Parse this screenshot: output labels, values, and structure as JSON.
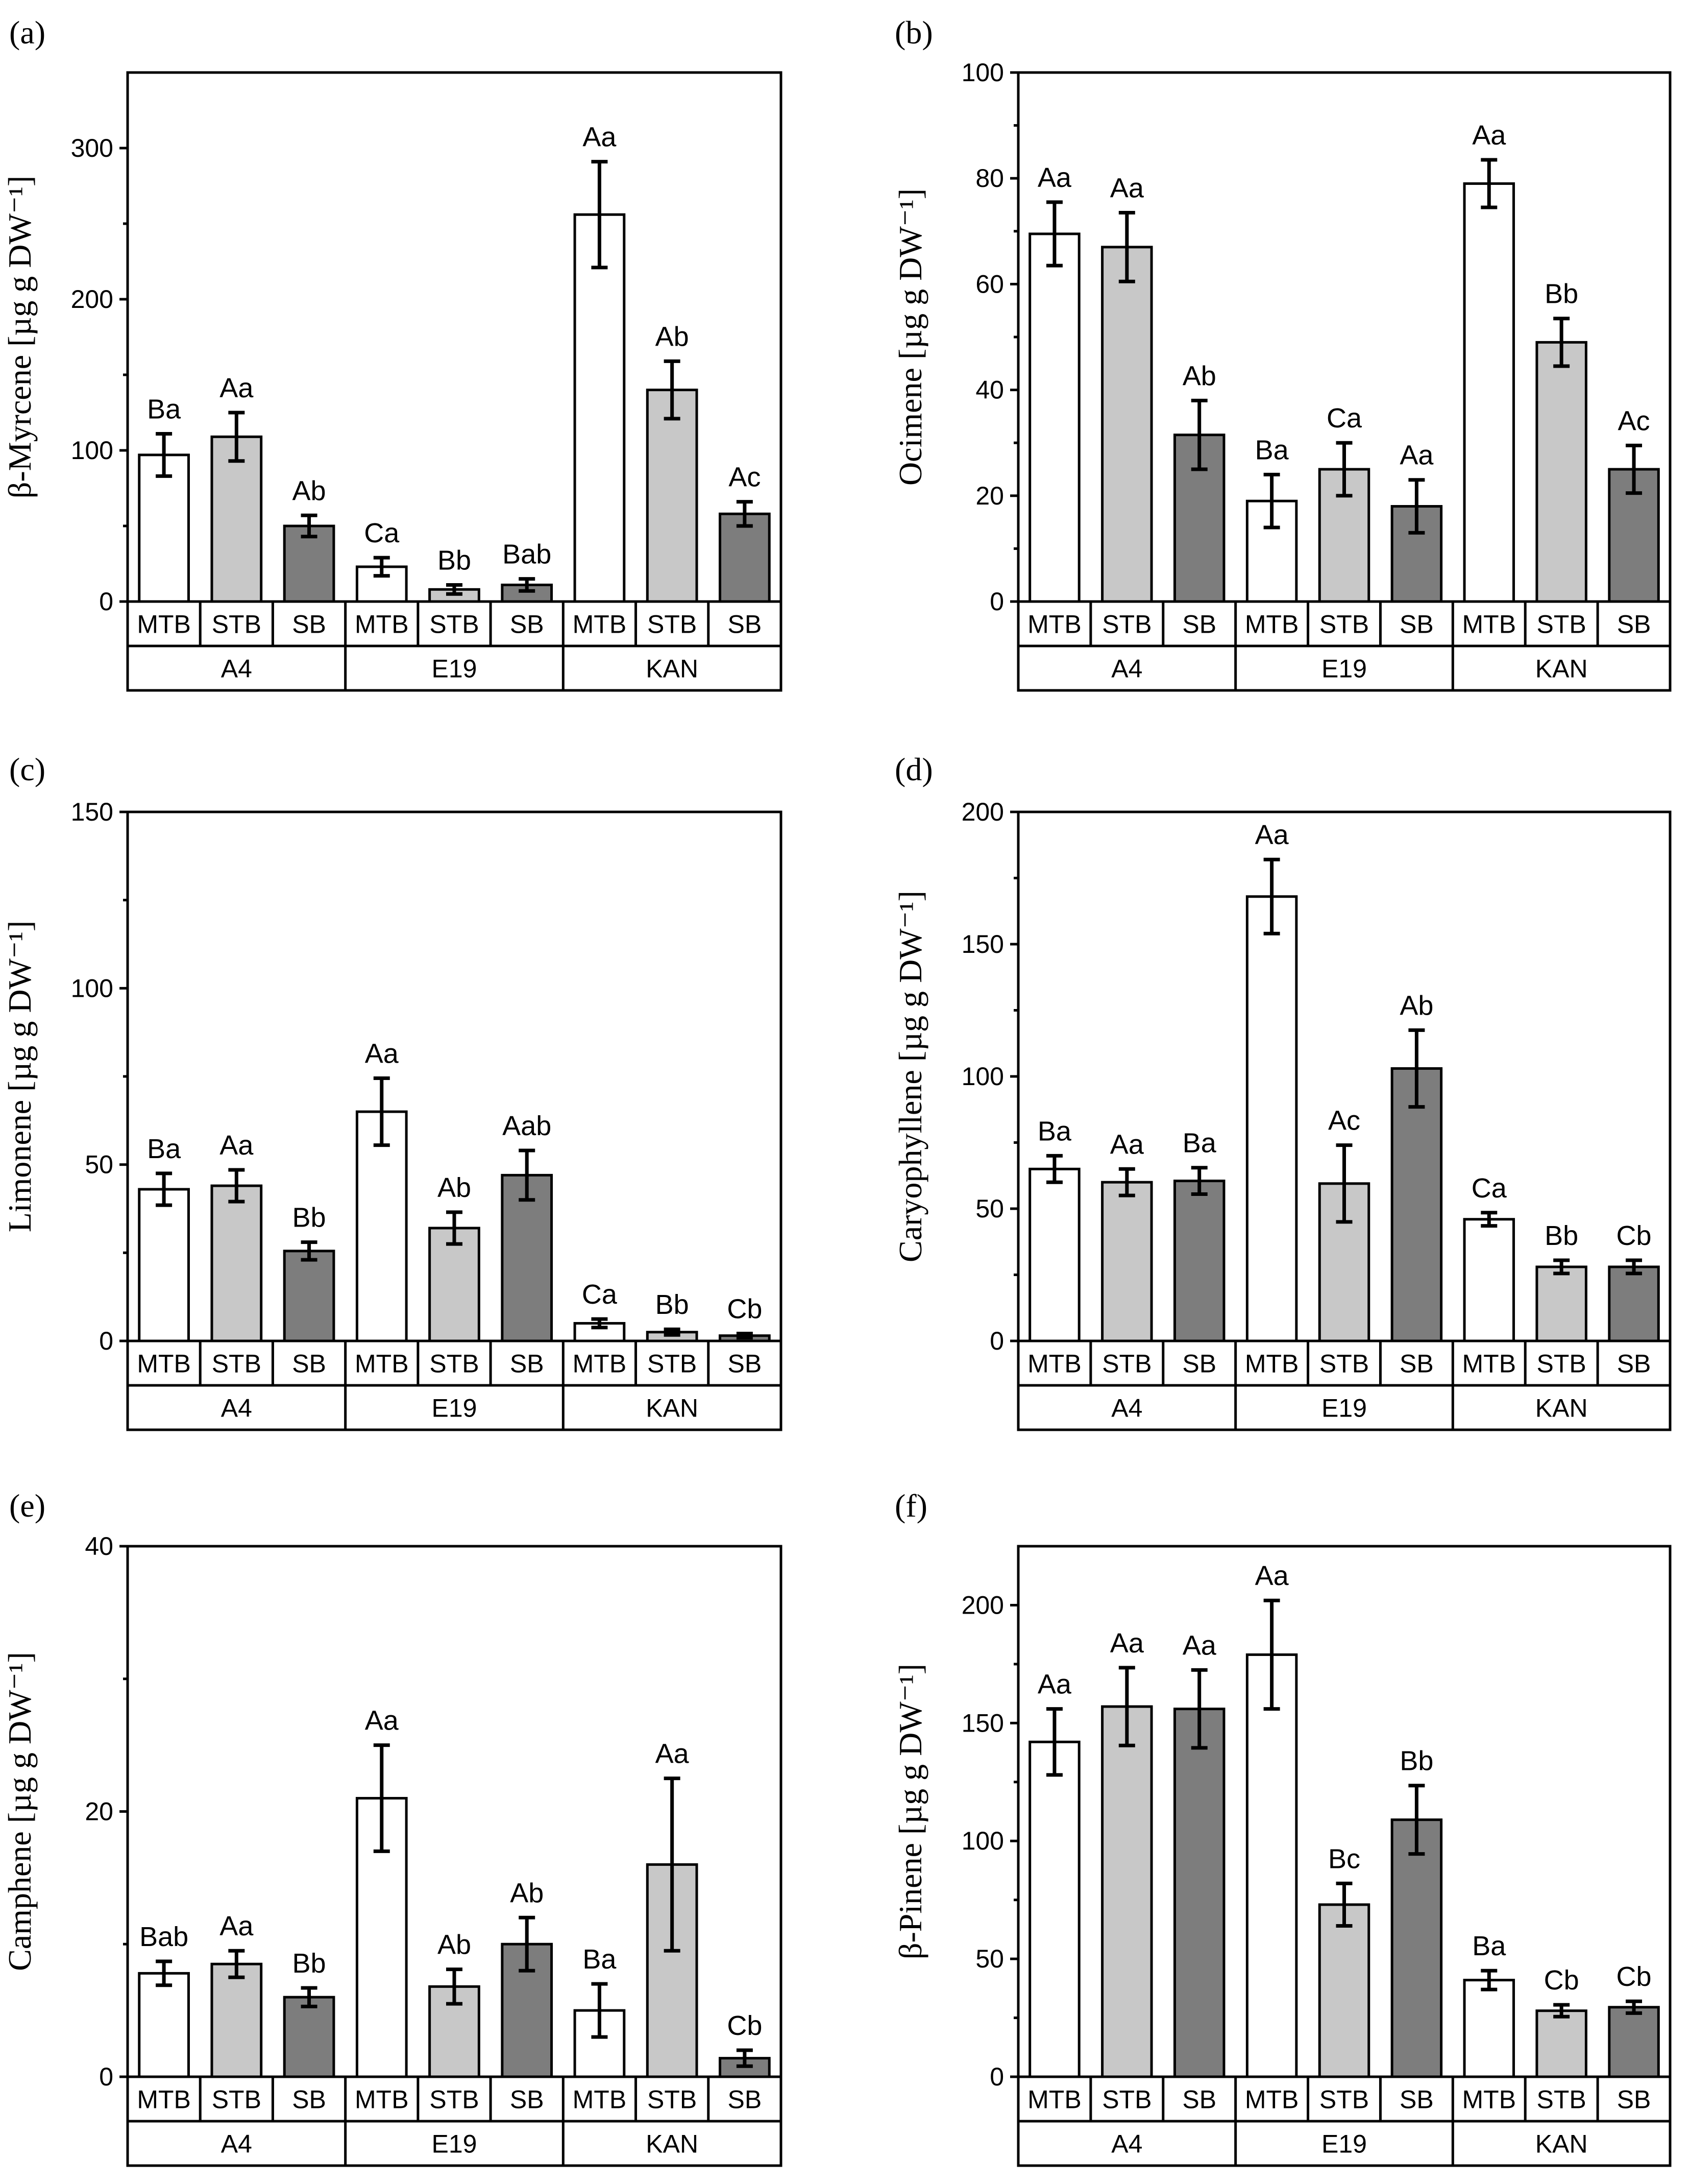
{
  "colors": {
    "MTB": "#ffffff",
    "STB": "#c8c8c8",
    "SB": "#7d7d7d",
    "axis": "#000000"
  },
  "chart_data": [
    {
      "type": "bar",
      "panel": "(a)",
      "ylabel": "β-Myrcene [µg g DW⁻¹]",
      "ylim": [
        0,
        350
      ],
      "yticks": [
        0,
        100,
        200,
        300
      ],
      "groups": [
        "A4",
        "E19",
        "KAN"
      ],
      "categories": [
        "MTB",
        "STB",
        "SB"
      ],
      "series": [
        {
          "name": "MTB",
          "values": [
            97,
            23,
            256
          ],
          "errors": [
            14,
            6,
            35
          ],
          "labels": [
            "Ba",
            "Ca",
            "Aa"
          ]
        },
        {
          "name": "STB",
          "values": [
            109,
            8,
            140
          ],
          "errors": [
            16,
            3,
            19
          ],
          "labels": [
            "Aa",
            "Bb",
            "Ab"
          ]
        },
        {
          "name": "SB",
          "values": [
            50,
            11,
            58
          ],
          "errors": [
            7,
            4,
            8
          ],
          "labels": [
            "Ab",
            "Bab",
            "Ac"
          ]
        }
      ]
    },
    {
      "type": "bar",
      "panel": "(b)",
      "ylabel": "Ocimene [µg g DW⁻¹]",
      "ylim": [
        0,
        100
      ],
      "yticks": [
        0,
        20,
        40,
        60,
        80,
        100
      ],
      "groups": [
        "A4",
        "E19",
        "KAN"
      ],
      "categories": [
        "MTB",
        "STB",
        "SB"
      ],
      "series": [
        {
          "name": "MTB",
          "values": [
            69.5,
            19,
            79
          ],
          "errors": [
            6,
            5,
            4.5
          ],
          "labels": [
            "Aa",
            "Ba",
            "Aa"
          ]
        },
        {
          "name": "STB",
          "values": [
            67,
            25,
            49
          ],
          "errors": [
            6.5,
            5,
            4.5
          ],
          "labels": [
            "Aa",
            "Ca",
            "Bb"
          ]
        },
        {
          "name": "SB",
          "values": [
            31.5,
            18,
            25
          ],
          "errors": [
            6.5,
            5,
            4.5
          ],
          "labels": [
            "Ab",
            "Aa",
            "Ac"
          ]
        }
      ]
    },
    {
      "type": "bar",
      "panel": "(c)",
      "ylabel": "Limonene [µg g DW⁻¹]",
      "ylim": [
        0,
        150
      ],
      "yticks": [
        0,
        50,
        100,
        150
      ],
      "groups": [
        "A4",
        "E19",
        "KAN"
      ],
      "categories": [
        "MTB",
        "STB",
        "SB"
      ],
      "series": [
        {
          "name": "MTB",
          "values": [
            43,
            65,
            5
          ],
          "errors": [
            4.5,
            9.5,
            1.2
          ],
          "labels": [
            "Ba",
            "Aa",
            "Ca"
          ]
        },
        {
          "name": "STB",
          "values": [
            44,
            32,
            2.5
          ],
          "errors": [
            4.5,
            4.5,
            0.8
          ],
          "labels": [
            "Aa",
            "Ab",
            "Bb"
          ]
        },
        {
          "name": "SB",
          "values": [
            25.5,
            47,
            1.5
          ],
          "errors": [
            2.5,
            7,
            0.6
          ],
          "labels": [
            "Bb",
            "Aab",
            "Cb"
          ]
        }
      ]
    },
    {
      "type": "bar",
      "panel": "(d)",
      "ylabel": "Caryophyllene [µg g DW⁻¹]",
      "ylim": [
        0,
        200
      ],
      "yticks": [
        0,
        50,
        100,
        150,
        200
      ],
      "groups": [
        "A4",
        "E19",
        "KAN"
      ],
      "categories": [
        "MTB",
        "STB",
        "SB"
      ],
      "series": [
        {
          "name": "MTB",
          "values": [
            65,
            168,
            46
          ],
          "errors": [
            5,
            14,
            2.5
          ],
          "labels": [
            "Ba",
            "Aa",
            "Ca"
          ]
        },
        {
          "name": "STB",
          "values": [
            60,
            59.5,
            28
          ],
          "errors": [
            5,
            14.5,
            2.5
          ],
          "labels": [
            "Aa",
            "Ac",
            "Bb"
          ]
        },
        {
          "name": "SB",
          "values": [
            60.5,
            103,
            28
          ],
          "errors": [
            5,
            14.5,
            2.5
          ],
          "labels": [
            "Ba",
            "Ab",
            "Cb"
          ]
        }
      ]
    },
    {
      "type": "bar",
      "panel": "(e)",
      "ylabel": "Camphene [µg g DW⁻¹]",
      "ylim": [
        0,
        40
      ],
      "yticks": [
        0,
        20,
        40
      ],
      "groups": [
        "A4",
        "E19",
        "KAN"
      ],
      "categories": [
        "MTB",
        "STB",
        "SB"
      ],
      "series": [
        {
          "name": "MTB",
          "values": [
            7.8,
            21,
            5
          ],
          "errors": [
            0.9,
            4,
            2
          ],
          "labels": [
            "Bab",
            "Aa",
            "Ba"
          ]
        },
        {
          "name": "STB",
          "values": [
            8.5,
            6.8,
            16
          ],
          "errors": [
            1,
            1.3,
            6.5
          ],
          "labels": [
            "Aa",
            "Ab",
            "Aa"
          ]
        },
        {
          "name": "SB",
          "values": [
            6,
            10,
            1.4
          ],
          "errors": [
            0.7,
            2,
            0.6
          ],
          "labels": [
            "Bb",
            "Ab",
            "Cb"
          ]
        }
      ]
    },
    {
      "type": "bar",
      "panel": "(f)",
      "ylabel": "β-Pinene [µg g DW⁻¹]",
      "ylim": [
        0,
        225
      ],
      "yticks": [
        0,
        50,
        100,
        150,
        200
      ],
      "groups": [
        "A4",
        "E19",
        "KAN"
      ],
      "categories": [
        "MTB",
        "STB",
        "SB"
      ],
      "series": [
        {
          "name": "MTB",
          "values": [
            142,
            179,
            41
          ],
          "errors": [
            14,
            23,
            4
          ],
          "labels": [
            "Aa",
            "Aa",
            "Ba"
          ]
        },
        {
          "name": "STB",
          "values": [
            157,
            73,
            28
          ],
          "errors": [
            16.5,
            9,
            2.5
          ],
          "labels": [
            "Aa",
            "Bc",
            "Cb"
          ]
        },
        {
          "name": "SB",
          "values": [
            156,
            109,
            29.5
          ],
          "errors": [
            16.5,
            14.5,
            2.5
          ],
          "labels": [
            "Aa",
            "Bb",
            "Cb"
          ]
        }
      ]
    }
  ]
}
